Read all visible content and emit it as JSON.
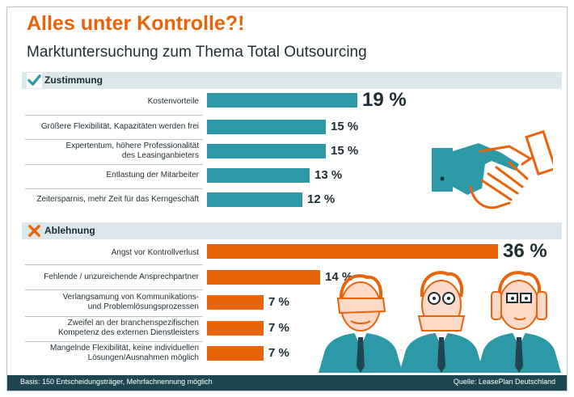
{
  "title": "Alles unter Kontrolle?!",
  "subtitle": "Marktuntersuchung zum Thema Total Outsourcing",
  "colors": {
    "title": "#e8630a",
    "approval": "#2b9aa6",
    "rejection": "#e8630a",
    "text": "#1e2d33",
    "band": "#dbe7ea",
    "footer": "#1e4651"
  },
  "chart_data": [
    {
      "type": "bar",
      "orientation": "horizontal",
      "section": "Zustimmung",
      "icon": "check-icon",
      "categories": [
        "Kostenvorteile",
        "Größere Flexibilität, Kapazitäten werden frei",
        "Expertentum, höhere Professionalität\ndes Leasinganbieters",
        "Entlastung der Mitarbeiter",
        "Zeitersparnis, mehr Zeit für das Kerngeschäft"
      ],
      "values": [
        19,
        15,
        15,
        13,
        12
      ],
      "value_labels": [
        "19 %",
        "15 %",
        "15 %",
        "13 %",
        "12 %"
      ],
      "color": "#2b9aa6"
    },
    {
      "type": "bar",
      "orientation": "horizontal",
      "section": "Ablehnung",
      "icon": "cross-icon",
      "categories": [
        "Angst vor Kontrollverlust",
        "Fehlende / unzureichende Ansprechpartner",
        "Verlangsamung von Kommunikations-\nund Problemlösungsprozessen",
        "Zweifel an der branchenspezifischen\nKompetenz des externen Dienstleisters",
        "Mangelnde Flexibilität, keine individuellen\nLösungen/Ausnahmen möglich"
      ],
      "values": [
        36,
        14,
        7,
        7,
        7
      ],
      "value_labels": [
        "36 %",
        "14 %",
        "7 %",
        "7 %",
        "7 %"
      ],
      "color": "#e8630a"
    }
  ],
  "illustrations": {
    "handshake": "handshake-icon",
    "monkeys": [
      "see-no-evil-man",
      "speak-no-evil-man",
      "hear-no-evil-man"
    ]
  },
  "footer": {
    "basis": "Basis: 150 Entscheidungsträger, Mehrfachnennung möglich",
    "source": "Quelle: LeasePlan Deutschland"
  }
}
